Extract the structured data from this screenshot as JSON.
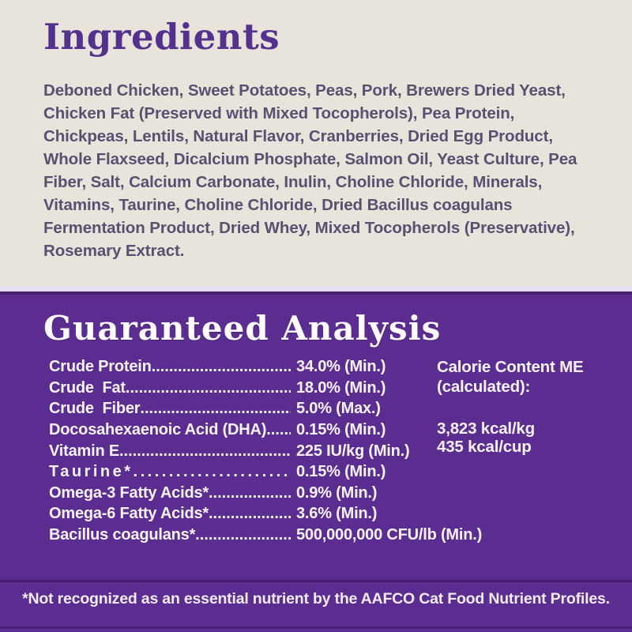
{
  "ingredients": {
    "title": "Ingredients",
    "text": "Deboned Chicken, Sweet Potatoes, Peas, Pork, Brewers Dried Yeast, Chicken Fat (Preserved with Mixed Tocopherols), Pea Protein, Chickpeas, Lentils, Natural Flavor, Cranberries, Dried Egg Product, Whole Flaxseed, Dicalcium Phosphate, Salmon Oil, Yeast Culture, Pea Fiber, Salt, Calcium Carbonate, Inulin, Choline Chloride, Minerals, Vitamins, Taurine, Choline Chloride, Dried Bacillus coagulans Fermentation Product, Dried Whey, Mixed Tocopherols (Preservative), Rosemary Extract."
  },
  "guaranteed_analysis": {
    "title": "Guaranteed Analysis",
    "dots_leader": "............................................................................................",
    "rows": [
      {
        "label": "Crude Protein",
        "value": "34.0% (Min.)"
      },
      {
        "label": "Crude  Fat",
        "value": "18.0% (Min.)"
      },
      {
        "label": "Crude  Fiber",
        "value": "5.0% (Max.)"
      },
      {
        "label": "Docosahexaenoic Acid (DHA)",
        "value": "0.15% (Min.)"
      },
      {
        "label": "Vitamin E",
        "value": "225 IU/kg (Min.)"
      },
      {
        "label": "Taurine*",
        "value": "0.15% (Min.)"
      },
      {
        "label": "Omega-3 Fatty Acids*",
        "value": "0.9% (Min.)"
      },
      {
        "label": "Omega-6 Fatty Acids*",
        "value": "3.6% (Min.)"
      },
      {
        "label": "Bacillus coagulans*",
        "value": "500,000,000 CFU/lb (Min.)"
      }
    ],
    "calorie": {
      "line1": "Calorie Content ME",
      "line2": "(calculated):",
      "kcal_kg": "3,823 kcal/kg",
      "kcal_cup": "435 kcal/cup"
    },
    "footnote": "*Not recognized as an essential nutrient by the AAFCO Cat Food Nutrient Profiles."
  },
  "colors": {
    "cream_bg": "#e8e4dc",
    "purple_bg": "#5c2d91",
    "heading_purple": "#54318c",
    "ingredients_text": "#575071",
    "white_text": "#ffffff"
  }
}
